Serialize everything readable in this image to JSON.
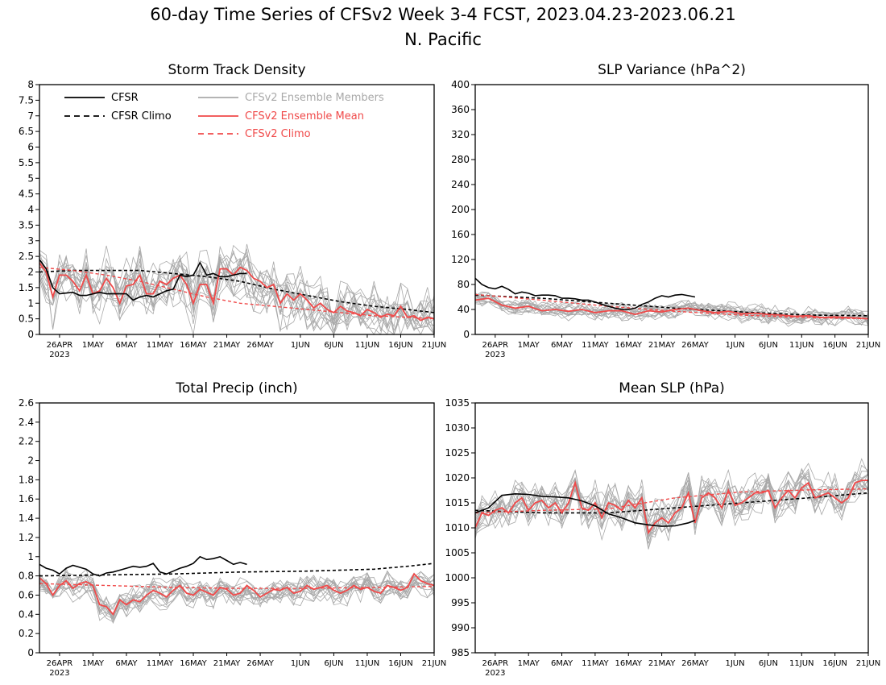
{
  "title_line1": "60-day Time Series of CFSv2 Week 3-4 FCST, 2023.04.23-2023.06.21",
  "title_line2": "N. Pacific",
  "colors": {
    "cfsr": "#000000",
    "member": "#a9a9a9",
    "ensemble_mean": "#f04a4a"
  },
  "legend": [
    {
      "label": "CFSR",
      "style": "solid",
      "color": "#000000"
    },
    {
      "label": "CFSR Climo",
      "style": "dashed",
      "color": "#000000"
    },
    {
      "label": "CFSv2 Ensemble Members",
      "style": "solid",
      "color": "#a9a9a9"
    },
    {
      "label": "CFSv2 Ensemble Mean",
      "style": "solid",
      "color": "#f04a4a"
    },
    {
      "label": "CFSv2 Climo",
      "style": "dashed",
      "color": "#f04a4a"
    }
  ],
  "chart_data": [
    {
      "type": "line",
      "title": "Storm Track Density",
      "ylim": [
        0,
        8
      ],
      "yticks": [
        "0",
        "0.5",
        "1",
        "1.5",
        "2",
        "2.5",
        "3",
        "3.5",
        "4",
        "4.5",
        "5",
        "5.5",
        "6",
        "6.5",
        "7",
        "7.5",
        "8"
      ],
      "xlim_days": [
        0,
        59
      ],
      "xticks": [
        "26APR",
        "1MAY",
        "6MAY",
        "11MAY",
        "16MAY",
        "21MAY",
        "26MAY",
        "1JUN",
        "6JUN",
        "11JUN",
        "16JUN",
        "21JUN"
      ],
      "xtick_year": "2023",
      "legend_position": "top-left",
      "members": {
        "count": 16,
        "base": "mean",
        "spread": 0.8,
        "min": 0
      },
      "series": [
        {
          "name": "CFSR",
          "x": [
            0,
            1,
            2,
            3,
            5,
            6,
            7,
            9,
            10,
            11,
            13,
            14,
            15,
            16,
            17,
            18,
            19,
            20,
            21,
            22,
            23,
            24,
            25,
            26,
            27,
            28,
            30,
            31
          ],
          "y": [
            2.4,
            2.1,
            1.5,
            1.3,
            1.35,
            1.25,
            1.25,
            1.35,
            1.3,
            1.3,
            1.3,
            1.1,
            1.2,
            1.25,
            1.2,
            1.3,
            1.4,
            1.45,
            1.9,
            1.85,
            1.9,
            2.3,
            1.9,
            1.95,
            1.85,
            1.85,
            1.95,
            1.95
          ]
        },
        {
          "name": "CFSR Climo",
          "x": [
            0,
            5,
            10,
            15,
            20,
            25,
            30,
            35,
            40,
            45,
            50,
            55,
            59
          ],
          "y": [
            2.0,
            2.05,
            2.05,
            2.05,
            1.95,
            1.85,
            1.7,
            1.45,
            1.25,
            1.05,
            0.9,
            0.8,
            0.7
          ]
        },
        {
          "name": "CFSv2 Ensemble Mean",
          "x": [
            0,
            1,
            2,
            3,
            4,
            5,
            6,
            7,
            8,
            9,
            10,
            11,
            12,
            13,
            14,
            15,
            16,
            17,
            18,
            19,
            20,
            21,
            22,
            23,
            24,
            25,
            26,
            27,
            28,
            29,
            30,
            31,
            32,
            33,
            34,
            35,
            36,
            37,
            38,
            39,
            40,
            41,
            42,
            43,
            44,
            45,
            46,
            47,
            48,
            49,
            50,
            51,
            52,
            53,
            54,
            55,
            56,
            57,
            58,
            59
          ],
          "y": [
            2.3,
            2.0,
            1.2,
            1.9,
            1.9,
            1.7,
            1.4,
            1.9,
            1.3,
            1.4,
            1.8,
            1.5,
            1.0,
            1.55,
            1.6,
            1.9,
            1.3,
            1.3,
            1.7,
            1.6,
            1.8,
            1.9,
            1.6,
            1.0,
            1.6,
            1.6,
            1.0,
            2.1,
            2.1,
            1.9,
            2.15,
            2.05,
            1.8,
            1.7,
            1.5,
            1.6,
            1.0,
            1.3,
            1.1,
            1.3,
            1.1,
            0.85,
            1.0,
            0.8,
            0.7,
            0.9,
            0.75,
            0.7,
            0.6,
            0.8,
            0.7,
            0.55,
            0.65,
            0.6,
            0.9,
            0.55,
            0.6,
            0.45,
            0.55,
            0.5
          ]
        },
        {
          "name": "CFSv2 Climo",
          "x": [
            0,
            5,
            10,
            15,
            20,
            25,
            30,
            35,
            40,
            45,
            50,
            55,
            59
          ],
          "y": [
            2.15,
            2.05,
            1.9,
            1.7,
            1.45,
            1.2,
            1.0,
            0.9,
            0.8,
            0.7,
            0.6,
            0.55,
            0.5
          ]
        }
      ]
    },
    {
      "type": "line",
      "title": "SLP Variance (hPa^2)",
      "ylim": [
        0,
        400
      ],
      "yticks": [
        "0",
        "40",
        "80",
        "120",
        "160",
        "200",
        "240",
        "280",
        "320",
        "360",
        "400"
      ],
      "xlim_days": [
        0,
        59
      ],
      "xticks": [
        "26APR",
        "1MAY",
        "6MAY",
        "11MAY",
        "16MAY",
        "21MAY",
        "26MAY",
        "1JUN",
        "6JUN",
        "11JUN",
        "16JUN",
        "21JUN"
      ],
      "xtick_year": "2023",
      "members": {
        "count": 16,
        "base": "mean",
        "spread": 12,
        "min": 0
      },
      "series": [
        {
          "name": "CFSR",
          "x": [
            0,
            1,
            2,
            3,
            4,
            5,
            6,
            7,
            8,
            9,
            10,
            11,
            12,
            13,
            14,
            15,
            16,
            17,
            18,
            19,
            20,
            21,
            22,
            23,
            24,
            25,
            26,
            27,
            28,
            29,
            30,
            31,
            32,
            33
          ],
          "y": [
            90,
            80,
            75,
            73,
            77,
            72,
            65,
            68,
            66,
            62,
            63,
            63,
            62,
            58,
            58,
            57,
            55,
            55,
            52,
            48,
            45,
            42,
            40,
            40,
            42,
            48,
            52,
            58,
            62,
            60,
            63,
            64,
            62,
            60
          ]
        },
        {
          "name": "CFSR Climo",
          "x": [
            0,
            10,
            20,
            30,
            40,
            50,
            59
          ],
          "y": [
            63,
            58,
            50,
            42,
            36,
            31,
            30
          ]
        },
        {
          "name": "CFSv2 Ensemble Mean",
          "x": [
            0,
            2,
            4,
            6,
            8,
            10,
            12,
            14,
            16,
            18,
            20,
            22,
            24,
            26,
            28,
            30,
            32,
            34,
            36,
            38,
            40,
            42,
            44,
            46,
            48,
            50,
            52,
            54,
            56,
            58,
            59
          ],
          "y": [
            55,
            58,
            47,
            42,
            45,
            38,
            40,
            37,
            40,
            35,
            38,
            38,
            32,
            38,
            36,
            40,
            42,
            38,
            35,
            37,
            33,
            34,
            32,
            31,
            29,
            30,
            27,
            28,
            27,
            26,
            25
          ]
        },
        {
          "name": "CFSv2 Climo",
          "x": [
            0,
            10,
            20,
            30,
            40,
            50,
            59
          ],
          "y": [
            64,
            55,
            45,
            37,
            31,
            27,
            25
          ]
        }
      ]
    },
    {
      "type": "line",
      "title": "Total Precip (inch)",
      "ylim": [
        0,
        2.6
      ],
      "yticks": [
        "0",
        "0.2",
        "0.4",
        "0.6",
        "0.8",
        "1",
        "1.2",
        "1.4",
        "1.6",
        "1.8",
        "2",
        "2.2",
        "2.4",
        "2.6"
      ],
      "xlim_days": [
        0,
        59
      ],
      "xticks": [
        "26APR",
        "1MAY",
        "6MAY",
        "11MAY",
        "16MAY",
        "21MAY",
        "26MAY",
        "1JUN",
        "6JUN",
        "11JUN",
        "16JUN",
        "21JUN"
      ],
      "xtick_year": "2023",
      "members": {
        "count": 16,
        "base": "mean",
        "spread": 0.12,
        "min": 0
      },
      "series": [
        {
          "name": "CFSR",
          "x": [
            0,
            1,
            2,
            3,
            4,
            5,
            6,
            7,
            8,
            9,
            10,
            11,
            12,
            13,
            14,
            15,
            16,
            17,
            18,
            19,
            20,
            21,
            22,
            23,
            24,
            25,
            26,
            27,
            28,
            29,
            30,
            31
          ],
          "y": [
            0.92,
            0.88,
            0.86,
            0.82,
            0.88,
            0.91,
            0.89,
            0.87,
            0.82,
            0.8,
            0.83,
            0.84,
            0.86,
            0.88,
            0.9,
            0.89,
            0.9,
            0.93,
            0.84,
            0.82,
            0.85,
            0.88,
            0.9,
            0.93,
            1.0,
            0.97,
            0.98,
            1.0,
            0.96,
            0.92,
            0.94,
            0.92
          ]
        },
        {
          "name": "CFSR Climo",
          "x": [
            0,
            10,
            20,
            30,
            40,
            50,
            55,
            59
          ],
          "y": [
            0.8,
            0.81,
            0.82,
            0.84,
            0.85,
            0.87,
            0.9,
            0.93
          ]
        },
        {
          "name": "CFSv2 Ensemble Mean",
          "x": [
            0,
            1,
            2,
            3,
            4,
            5,
            6,
            7,
            8,
            9,
            10,
            11,
            12,
            13,
            14,
            15,
            16,
            17,
            18,
            19,
            20,
            21,
            22,
            23,
            24,
            25,
            26,
            27,
            28,
            29,
            30,
            31,
            32,
            33,
            34,
            35,
            36,
            37,
            38,
            39,
            40,
            41,
            42,
            43,
            44,
            45,
            46,
            47,
            48,
            49,
            50,
            51,
            52,
            53,
            54,
            55,
            56,
            57,
            58,
            59
          ],
          "y": [
            0.78,
            0.72,
            0.6,
            0.7,
            0.75,
            0.67,
            0.72,
            0.74,
            0.7,
            0.5,
            0.48,
            0.4,
            0.55,
            0.5,
            0.55,
            0.53,
            0.6,
            0.65,
            0.62,
            0.58,
            0.65,
            0.7,
            0.62,
            0.6,
            0.66,
            0.63,
            0.6,
            0.68,
            0.66,
            0.6,
            0.62,
            0.7,
            0.65,
            0.58,
            0.62,
            0.66,
            0.65,
            0.68,
            0.62,
            0.64,
            0.7,
            0.66,
            0.68,
            0.7,
            0.65,
            0.62,
            0.65,
            0.7,
            0.66,
            0.68,
            0.64,
            0.62,
            0.7,
            0.68,
            0.65,
            0.68,
            0.82,
            0.75,
            0.72,
            0.7
          ]
        },
        {
          "name": "CFSv2 Climo",
          "x": [
            0,
            10,
            20,
            30,
            40,
            50,
            59
          ],
          "y": [
            0.72,
            0.7,
            0.68,
            0.67,
            0.67,
            0.68,
            0.69
          ]
        }
      ]
    },
    {
      "type": "line",
      "title": "Mean SLP (hPa)",
      "ylim": [
        985,
        1035
      ],
      "yticks": [
        "985",
        "990",
        "995",
        "1000",
        "1005",
        "1010",
        "1015",
        "1020",
        "1025",
        "1030",
        "1035"
      ],
      "xlim_days": [
        0,
        59
      ],
      "xticks": [
        "26APR",
        "1MAY",
        "6MAY",
        "11MAY",
        "16MAY",
        "21MAY",
        "26MAY",
        "1JUN",
        "6JUN",
        "11JUN",
        "16JUN",
        "21JUN"
      ],
      "xtick_year": "2023",
      "members": {
        "count": 16,
        "base": "mean",
        "spread": 3.5,
        "min": 985
      },
      "series": [
        {
          "name": "CFSR",
          "x": [
            0,
            2,
            4,
            6,
            8,
            10,
            12,
            14,
            16,
            18,
            20,
            22,
            24,
            26,
            28,
            30,
            32,
            33
          ],
          "y": [
            1013,
            1014,
            1016.5,
            1016.8,
            1016.7,
            1016.3,
            1016.2,
            1016,
            1015.4,
            1014.4,
            1012.8,
            1012,
            1011,
            1010.6,
            1010.3,
            1010.4,
            1011,
            1011.5
          ]
        },
        {
          "name": "CFSR Climo",
          "x": [
            0,
            10,
            20,
            30,
            40,
            50,
            59
          ],
          "y": [
            1013.5,
            1013,
            1013,
            1014,
            1015,
            1016,
            1017
          ]
        },
        {
          "name": "CFSv2 Ensemble Mean",
          "x": [
            0,
            1,
            2,
            3,
            4,
            5,
            6,
            7,
            8,
            9,
            10,
            11,
            12,
            13,
            14,
            15,
            16,
            17,
            18,
            19,
            20,
            21,
            22,
            23,
            24,
            25,
            26,
            27,
            28,
            29,
            30,
            31,
            32,
            33,
            34,
            35,
            36,
            37,
            38,
            39,
            40,
            41,
            42,
            43,
            44,
            45,
            46,
            47,
            48,
            49,
            50,
            51,
            52,
            53,
            54,
            55,
            56,
            57,
            58,
            59
          ],
          "y": [
            1010,
            1013,
            1012.5,
            1013.5,
            1014,
            1013,
            1015,
            1016,
            1013.5,
            1015,
            1015.5,
            1014,
            1015,
            1013,
            1015,
            1019,
            1014,
            1013.5,
            1015,
            1012,
            1015,
            1014.5,
            1013.5,
            1015.5,
            1014,
            1016,
            1009,
            1011,
            1012,
            1011,
            1013,
            1014,
            1017,
            1011,
            1016,
            1017,
            1016,
            1014,
            1017.5,
            1014.5,
            1015,
            1016,
            1017,
            1017,
            1017.5,
            1014,
            1016,
            1017.5,
            1016,
            1018,
            1019,
            1016,
            1016.5,
            1017,
            1016,
            1015,
            1016,
            1019,
            1019.5,
            1019.5
          ]
        },
        {
          "name": "CFSv2 Climo",
          "x": [
            0,
            10,
            20,
            30,
            40,
            50,
            59
          ],
          "y": [
            1013,
            1013.5,
            1013.8,
            1016,
            1017.2,
            1017.6,
            1017.8
          ]
        }
      ]
    }
  ]
}
